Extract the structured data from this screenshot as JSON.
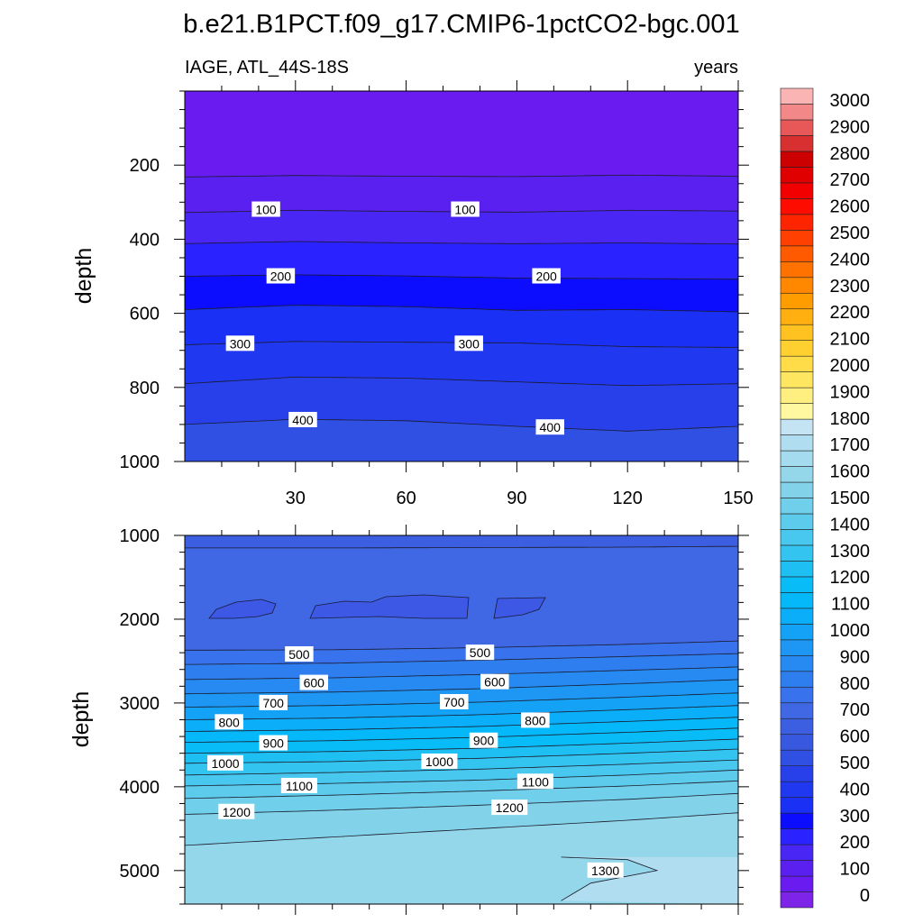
{
  "title": "b.e21.B1PCT.f09_g17.CMIP6-1pctCO2-bgc.001",
  "panel_left_label": "IAGE, ATL_44S-18S",
  "panel_right_label": "years",
  "chart_data": [
    {
      "type": "contour",
      "ylabel": "depth",
      "xlim": [
        0,
        150
      ],
      "ylim": [
        0,
        1000
      ],
      "y_inverted": true,
      "x_ticks": [
        30,
        60,
        90,
        120,
        150
      ],
      "y_ticks": [
        200,
        400,
        600,
        800,
        1000
      ],
      "fill_levels": [
        50,
        100,
        150,
        200,
        250,
        300,
        350,
        400,
        450
      ],
      "fill_colors": [
        "#6a1cf0",
        "#5a20f0",
        "#4a26f5",
        "#2a22ff",
        "#0c0cff",
        "#1a30f5",
        "#2038f0",
        "#2840ea",
        "#3050e4",
        "#3858e0"
      ],
      "contour_lines": [
        {
          "level": 50,
          "points": [
            [
              0,
              232
            ],
            [
              30,
              228
            ],
            [
              60,
              230
            ],
            [
              90,
              231
            ],
            [
              120,
              227
            ],
            [
              150,
              230
            ]
          ]
        },
        {
          "level": 100,
          "points": [
            [
              0,
              328
            ],
            [
              30,
              322
            ],
            [
              60,
              325
            ],
            [
              90,
              327
            ],
            [
              120,
              322
            ],
            [
              150,
              324
            ]
          ]
        },
        {
          "level": 150,
          "points": [
            [
              0,
              412
            ],
            [
              30,
              406
            ],
            [
              60,
              410
            ],
            [
              90,
              412
            ],
            [
              120,
              410
            ],
            [
              150,
              413
            ]
          ]
        },
        {
          "level": 200,
          "points": [
            [
              0,
              500
            ],
            [
              30,
              496
            ],
            [
              60,
              499
            ],
            [
              90,
              505
            ],
            [
              120,
              506
            ],
            [
              150,
              508
            ]
          ]
        },
        {
          "level": 250,
          "points": [
            [
              0,
              590
            ],
            [
              30,
              578
            ],
            [
              60,
              582
            ],
            [
              90,
              592
            ],
            [
              120,
              590
            ],
            [
              150,
              596
            ]
          ]
        },
        {
          "level": 300,
          "points": [
            [
              0,
              685
            ],
            [
              30,
              676
            ],
            [
              60,
              678
            ],
            [
              90,
              680
            ],
            [
              120,
              690
            ],
            [
              150,
              692
            ]
          ]
        },
        {
          "level": 350,
          "points": [
            [
              0,
              790
            ],
            [
              30,
              772
            ],
            [
              60,
              775
            ],
            [
              90,
              785
            ],
            [
              120,
              795
            ],
            [
              150,
              790
            ]
          ]
        },
        {
          "level": 400,
          "points": [
            [
              0,
              900
            ],
            [
              30,
              886
            ],
            [
              60,
              890
            ],
            [
              90,
              905
            ],
            [
              120,
              918
            ],
            [
              150,
              905
            ]
          ]
        }
      ],
      "line_labels": [
        {
          "text": "100",
          "x": 22,
          "y": 320
        },
        {
          "text": "100",
          "x": 76,
          "y": 320
        },
        {
          "text": "200",
          "x": 26,
          "y": 500
        },
        {
          "text": "200",
          "x": 98,
          "y": 500
        },
        {
          "text": "300",
          "x": 15,
          "y": 682
        },
        {
          "text": "300",
          "x": 77,
          "y": 682
        },
        {
          "text": "400",
          "x": 32,
          "y": 888
        },
        {
          "text": "400",
          "x": 99,
          "y": 908
        }
      ]
    },
    {
      "type": "contour",
      "ylabel": "depth",
      "xlim": [
        0,
        150
      ],
      "ylim": [
        1000,
        5400
      ],
      "y_inverted": true,
      "x_ticks": [
        30,
        60,
        90,
        120,
        150
      ],
      "y_ticks": [
        1000,
        2000,
        3000,
        4000,
        5000
      ],
      "fill_levels": [
        450,
        500,
        550,
        600,
        650,
        700,
        750,
        800,
        850,
        900,
        950,
        1000,
        1050,
        1100,
        1150,
        1200,
        1250,
        1300
      ],
      "fill_colors": [
        "#3c5ee0",
        "#4068e4",
        "#3872ec",
        "#2f7ef0",
        "#268af2",
        "#1d96f4",
        "#14a2f6",
        "#0baef8",
        "#04b8fa",
        "#08bcf7",
        "#1ec0f3",
        "#33c4f0",
        "#48c8ee",
        "#5ccbec",
        "#70cfea",
        "#82d3ea",
        "#94d6ea",
        "#a4dbee",
        "#b0def0"
      ],
      "contour_lines": [
        {
          "level": 450,
          "points": [
            [
              0,
              1150
            ],
            [
              40,
              1150
            ],
            [
              80,
              1145
            ],
            [
              120,
              1140
            ],
            [
              150,
              1130
            ]
          ]
        },
        {
          "level": 500,
          "points": [
            [
              0,
              2370
            ],
            [
              40,
              2365
            ],
            [
              80,
              2340
            ],
            [
              120,
              2300
            ],
            [
              150,
              2260
            ]
          ]
        },
        {
          "level": 550,
          "points": [
            [
              0,
              2540
            ],
            [
              40,
              2525
            ],
            [
              80,
              2490
            ],
            [
              120,
              2445
            ],
            [
              150,
              2410
            ]
          ]
        },
        {
          "level": 600,
          "points": [
            [
              0,
              2720
            ],
            [
              40,
              2700
            ],
            [
              80,
              2660
            ],
            [
              120,
              2610
            ],
            [
              150,
              2570
            ]
          ]
        },
        {
          "level": 650,
          "points": [
            [
              0,
              2890
            ],
            [
              40,
              2870
            ],
            [
              80,
              2830
            ],
            [
              120,
              2770
            ],
            [
              150,
              2720
            ]
          ]
        },
        {
          "level": 700,
          "points": [
            [
              0,
              3050
            ],
            [
              40,
              3030
            ],
            [
              80,
              2990
            ],
            [
              120,
              2930
            ],
            [
              150,
              2880
            ]
          ]
        },
        {
          "level": 750,
          "points": [
            [
              0,
              3200
            ],
            [
              40,
              3180
            ],
            [
              80,
              3140
            ],
            [
              120,
              3080
            ],
            [
              150,
              3030
            ]
          ]
        },
        {
          "level": 800,
          "points": [
            [
              0,
              3340
            ],
            [
              40,
              3320
            ],
            [
              80,
              3280
            ],
            [
              120,
              3220
            ],
            [
              150,
              3170
            ]
          ]
        },
        {
          "level": 850,
          "points": [
            [
              0,
              3470
            ],
            [
              40,
              3450
            ],
            [
              80,
              3410
            ],
            [
              120,
              3350
            ],
            [
              150,
              3300
            ]
          ]
        },
        {
          "level": 900,
          "points": [
            [
              0,
              3600
            ],
            [
              40,
              3580
            ],
            [
              80,
              3540
            ],
            [
              120,
              3480
            ],
            [
              150,
              3430
            ]
          ]
        },
        {
          "level": 950,
          "points": [
            [
              0,
              3720
            ],
            [
              40,
              3700
            ],
            [
              80,
              3660
            ],
            [
              120,
              3600
            ],
            [
              150,
              3550
            ]
          ]
        },
        {
          "level": 1000,
          "points": [
            [
              0,
              3860
            ],
            [
              40,
              3830
            ],
            [
              80,
              3790
            ],
            [
              120,
              3730
            ],
            [
              150,
              3680
            ]
          ]
        },
        {
          "level": 1050,
          "points": [
            [
              0,
              3990
            ],
            [
              40,
              3960
            ],
            [
              80,
              3920
            ],
            [
              120,
              3860
            ],
            [
              150,
              3800
            ]
          ]
        },
        {
          "level": 1100,
          "points": [
            [
              0,
              4140
            ],
            [
              40,
              4100
            ],
            [
              80,
              4050
            ],
            [
              120,
              3990
            ],
            [
              150,
              3930
            ]
          ]
        },
        {
          "level": 1150,
          "points": [
            [
              0,
              4330
            ],
            [
              40,
              4280
            ],
            [
              80,
              4220
            ],
            [
              120,
              4150
            ],
            [
              150,
              4080
            ]
          ]
        },
        {
          "level": 1200,
          "points": [
            [
              0,
              4700
            ],
            [
              40,
              4600
            ],
            [
              80,
              4500
            ],
            [
              120,
              4400
            ],
            [
              150,
              4310
            ]
          ]
        },
        {
          "level": 1250,
          "points": [
            [
              102,
              4840
            ],
            [
              120,
              4870
            ],
            [
              128,
              5000
            ],
            [
              110,
              5150
            ],
            [
              102,
              5360
            ]
          ]
        }
      ],
      "line_labels": [
        {
          "text": "500",
          "x": 31,
          "y": 2420
        },
        {
          "text": "500",
          "x": 80,
          "y": 2400
        },
        {
          "text": "600",
          "x": 35,
          "y": 2760
        },
        {
          "text": "600",
          "x": 84,
          "y": 2750
        },
        {
          "text": "700",
          "x": 24,
          "y": 3000
        },
        {
          "text": "700",
          "x": 73,
          "y": 2990
        },
        {
          "text": "800",
          "x": 12,
          "y": 3230
        },
        {
          "text": "800",
          "x": 95,
          "y": 3210
        },
        {
          "text": "900",
          "x": 24,
          "y": 3480
        },
        {
          "text": "900",
          "x": 81,
          "y": 3450
        },
        {
          "text": "1000",
          "x": 11,
          "y": 3720
        },
        {
          "text": "1000",
          "x": 69,
          "y": 3700
        },
        {
          "text": "1100",
          "x": 31,
          "y": 3990
        },
        {
          "text": "1100",
          "x": 95,
          "y": 3940
        },
        {
          "text": "1200",
          "x": 14,
          "y": 4300
        },
        {
          "text": "1200",
          "x": 88,
          "y": 4250
        },
        {
          "text": "1300",
          "x": 114,
          "y": 5000
        }
      ]
    }
  ],
  "colorbar": {
    "labels": [
      "0",
      "100",
      "200",
      "300",
      "400",
      "500",
      "600",
      "700",
      "800",
      "900",
      "1000",
      "1100",
      "1200",
      "1300",
      "1400",
      "1500",
      "1600",
      "1700",
      "1800",
      "1900",
      "2000",
      "2100",
      "2200",
      "2300",
      "2400",
      "2500",
      "2600",
      "2700",
      "2800",
      "2900",
      "3000"
    ],
    "colors": [
      "#7d24e8",
      "#6a1cf0",
      "#5a20f0",
      "#4a26f5",
      "#2a22ff",
      "#0c0cff",
      "#1a30f5",
      "#2038f0",
      "#2840ea",
      "#3050e4",
      "#3858e0",
      "#3c5ee0",
      "#4068e4",
      "#3872ec",
      "#2f7ef0",
      "#268af2",
      "#1d96f4",
      "#14a2f6",
      "#0baef8",
      "#04b8fa",
      "#08bcf7",
      "#1ec0f3",
      "#33c4f0",
      "#48c8ee",
      "#5ccbec",
      "#70cfea",
      "#82d3ea",
      "#94d6ea",
      "#a4dbee",
      "#b0def0",
      "#c4e4f4",
      "#fff8a0",
      "#ffef80",
      "#ffe660",
      "#ffdc48",
      "#ffd030",
      "#ffc220",
      "#ffb010",
      "#ff9c00",
      "#ff8800",
      "#ff7200",
      "#ff5a00",
      "#ff4000",
      "#ff2400",
      "#ff0c00",
      "#f20000",
      "#e00000",
      "#cc0000",
      "#d83030",
      "#e85858",
      "#f28888",
      "#fab4b4"
    ]
  }
}
